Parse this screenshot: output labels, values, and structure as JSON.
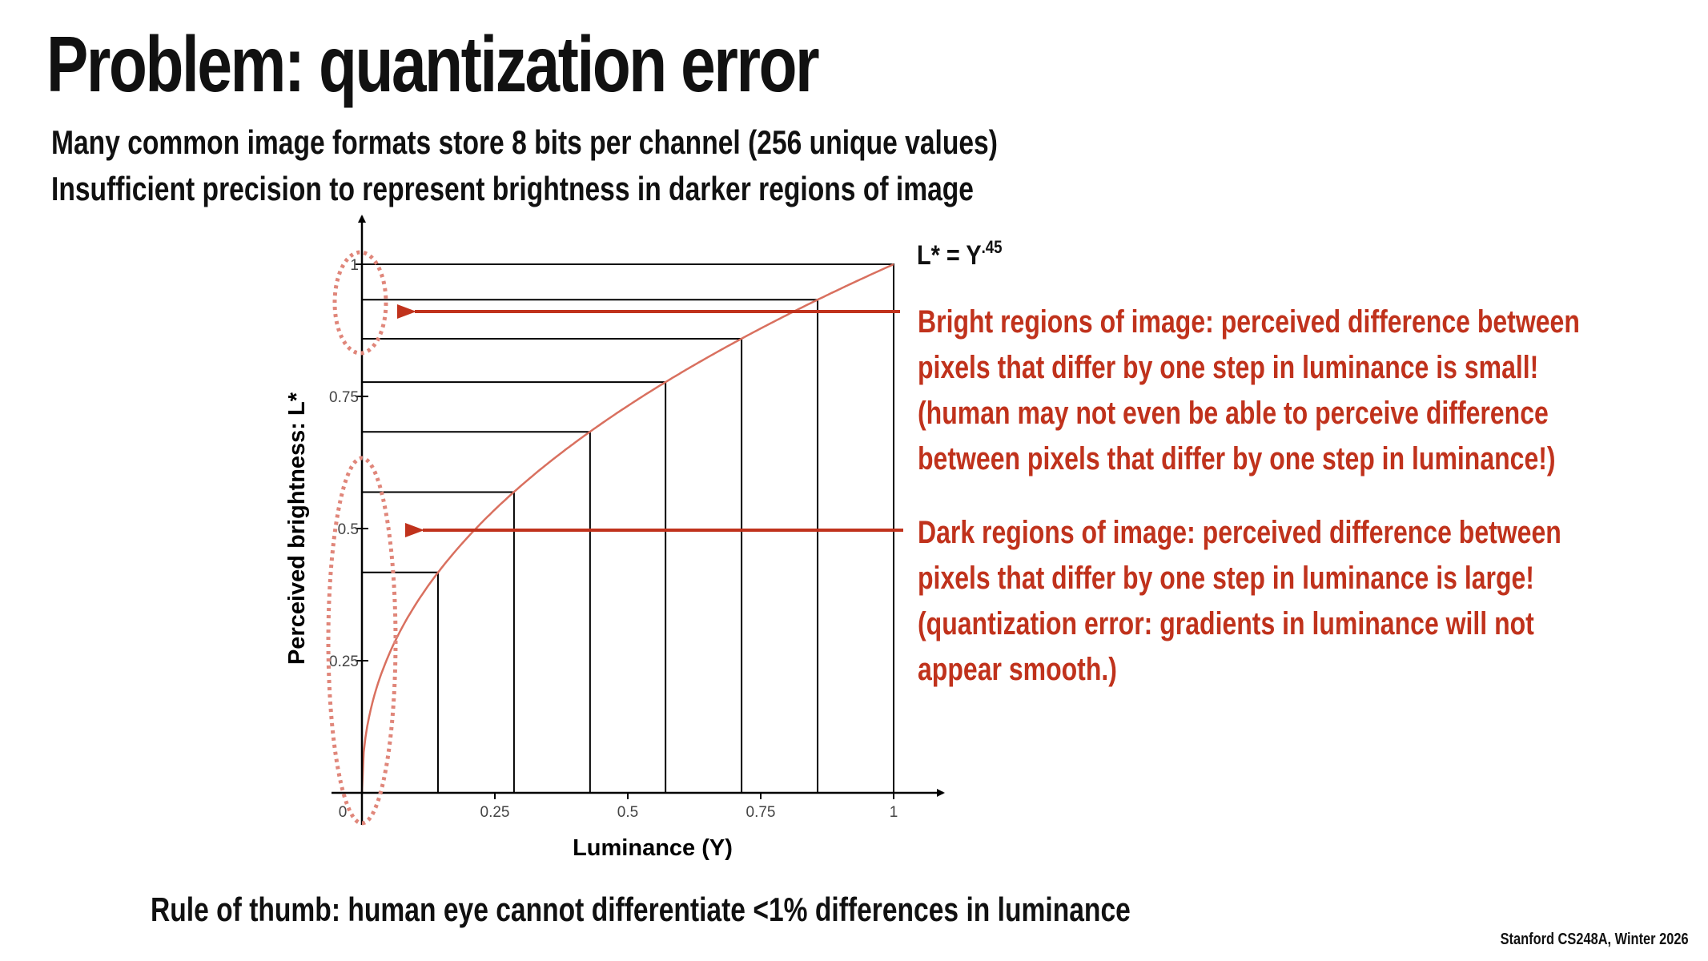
{
  "slide": {
    "title": "Problem: quantization error",
    "bullets": [
      "Many common image formats store 8 bits per channel (256 unique values)",
      "Insufficient precision to represent brightness in darker regions of image"
    ],
    "rule_of_thumb": "Rule of thumb: human eye cannot differentiate <1% differences in luminance",
    "footer": "Stanford CS248A, Winter 2026",
    "accent_color": "#c0321c"
  },
  "callouts": {
    "bright": "Bright regions of image: perceived difference between pixels that differ by one step in luminance is small! (human may not even be able to perceive difference between pixels that differ by one step in luminance!)",
    "dark": "Dark regions of image: perceived difference between pixels that differ by one step in luminance is large! (quantization error: gradients in luminance will not appear smooth.)"
  },
  "chart_data": {
    "type": "line",
    "formula": {
      "base": "L* = Y",
      "exponent": ".45"
    },
    "xlabel": "Luminance (Y)",
    "ylabel": "Perceived brightness: L*",
    "xlim": [
      0,
      1
    ],
    "ylim": [
      0,
      1
    ],
    "x_ticks": [
      "0",
      "0.25",
      "0.5",
      "0.75",
      "1"
    ],
    "y_ticks": [
      "0.25",
      "0.5",
      "0.75",
      "1"
    ],
    "gamma": 0.45,
    "quantization_steps_x": [
      0.143,
      0.286,
      0.429,
      0.571,
      0.714,
      0.857,
      1.0
    ],
    "quantization_steps_y": [
      0.417,
      0.569,
      0.683,
      0.777,
      0.859,
      0.933,
      1.0
    ],
    "curve_color": "#d9705f",
    "step_color": "#000000",
    "highlight_color": "#e0867a"
  }
}
